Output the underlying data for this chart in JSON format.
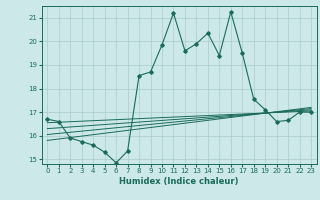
{
  "xlabel": "Humidex (Indice chaleur)",
  "ylabel": "",
  "background_color": "#cce8e8",
  "grid_color": "#aacccc",
  "line_color": "#1a6b5a",
  "xlim": [
    -0.5,
    23.5
  ],
  "ylim": [
    14.8,
    21.5
  ],
  "yticks": [
    15,
    16,
    17,
    18,
    19,
    20,
    21
  ],
  "xticks": [
    0,
    1,
    2,
    3,
    4,
    5,
    6,
    7,
    8,
    9,
    10,
    11,
    12,
    13,
    14,
    15,
    16,
    17,
    18,
    19,
    20,
    21,
    22,
    23
  ],
  "main_line": [
    [
      0,
      16.7
    ],
    [
      1,
      16.6
    ],
    [
      2,
      15.9
    ],
    [
      3,
      15.75
    ],
    [
      4,
      15.6
    ],
    [
      5,
      15.3
    ],
    [
      6,
      14.85
    ],
    [
      7,
      15.35
    ],
    [
      8,
      18.55
    ],
    [
      9,
      18.7
    ],
    [
      10,
      19.85
    ],
    [
      11,
      21.2
    ],
    [
      12,
      19.6
    ],
    [
      13,
      19.9
    ],
    [
      14,
      20.35
    ],
    [
      15,
      19.4
    ],
    [
      16,
      21.25
    ],
    [
      17,
      19.5
    ],
    [
      18,
      17.55
    ],
    [
      19,
      17.1
    ],
    [
      20,
      16.6
    ],
    [
      21,
      16.65
    ],
    [
      22,
      17.0
    ],
    [
      23,
      17.0
    ]
  ],
  "trend_lines": [
    [
      [
        0,
        16.55
      ],
      [
        23,
        17.05
      ]
    ],
    [
      [
        0,
        16.3
      ],
      [
        23,
        17.1
      ]
    ],
    [
      [
        0,
        16.05
      ],
      [
        23,
        17.15
      ]
    ],
    [
      [
        0,
        15.8
      ],
      [
        23,
        17.2
      ]
    ]
  ]
}
